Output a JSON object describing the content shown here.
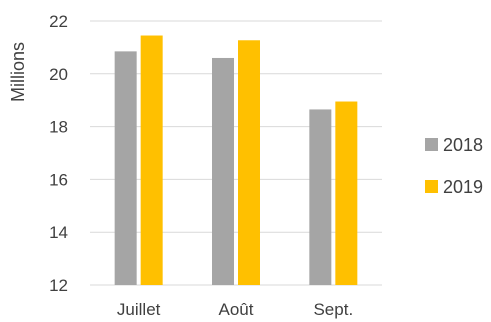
{
  "chart_data": {
    "type": "bar",
    "categories": [
      "Juillet",
      "Août",
      "Sept."
    ],
    "series": [
      {
        "name": "2018",
        "values": [
          20.85,
          20.6,
          18.65
        ],
        "color": "#A5A5A5"
      },
      {
        "name": "2019",
        "values": [
          21.45,
          21.27,
          18.95
        ],
        "color": "#FFC000"
      }
    ],
    "ylabel": "Millions",
    "ylim": [
      12,
      22
    ],
    "yticks": [
      12,
      14,
      16,
      18,
      20,
      22
    ],
    "grid": true,
    "legend": "right"
  }
}
